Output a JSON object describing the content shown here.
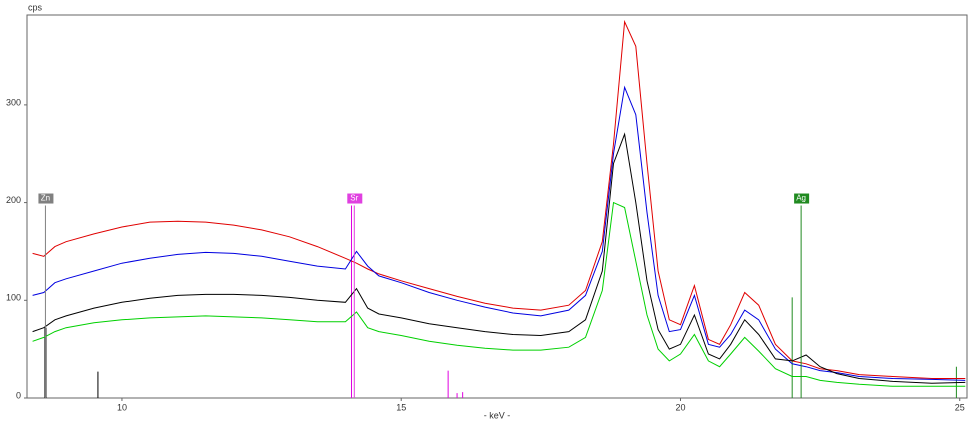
{
  "chart_data": {
    "type": "line",
    "y_label": "cps",
    "x_label": "- keV -",
    "xlim": [
      8.3,
      25.13
    ],
    "xticks": [
      10,
      15,
      20,
      25
    ],
    "ylim": [
      0,
      392
    ],
    "yticks": [
      0,
      100,
      200,
      300
    ],
    "x": [
      8.4,
      8.6,
      8.8,
      9.0,
      9.5,
      10,
      10.5,
      11,
      11.5,
      12,
      12.5,
      13,
      13.5,
      14.0,
      14.2,
      14.4,
      14.6,
      15,
      15.5,
      16,
      16.5,
      17,
      17.5,
      18,
      18.3,
      18.6,
      18.8,
      19.0,
      19.2,
      19.4,
      19.6,
      19.8,
      20.0,
      20.25,
      20.5,
      20.7,
      20.9,
      21.15,
      21.4,
      21.7,
      22.0,
      22.25,
      22.5,
      22.8,
      23.2,
      23.8,
      24.5,
      25.1
    ],
    "series": [
      {
        "color": "#e00000",
        "values": [
          148,
          145,
          155,
          160,
          168,
          175,
          180,
          181,
          180,
          177,
          172,
          165,
          155,
          143,
          138,
          132,
          127,
          120,
          112,
          104,
          97,
          92,
          90,
          95,
          110,
          160,
          260,
          385,
          360,
          240,
          130,
          80,
          75,
          115,
          60,
          55,
          75,
          108,
          95,
          55,
          38,
          35,
          30,
          28,
          24,
          22,
          20,
          20
        ]
      },
      {
        "color": "#0000e0",
        "values": [
          105,
          108,
          118,
          122,
          130,
          138,
          143,
          147,
          149,
          148,
          145,
          140,
          135,
          132,
          150,
          135,
          125,
          118,
          108,
          100,
          93,
          87,
          84,
          90,
          105,
          150,
          250,
          318,
          290,
          190,
          105,
          68,
          70,
          105,
          55,
          52,
          65,
          90,
          80,
          50,
          35,
          32,
          28,
          26,
          22,
          20,
          19,
          18
        ]
      },
      {
        "color": "#000000",
        "values": [
          68,
          72,
          80,
          84,
          92,
          98,
          102,
          105,
          106,
          106,
          105,
          103,
          100,
          98,
          112,
          92,
          86,
          82,
          76,
          72,
          68,
          65,
          64,
          68,
          80,
          130,
          240,
          270,
          200,
          120,
          70,
          50,
          55,
          85,
          45,
          40,
          55,
          80,
          65,
          40,
          38,
          44,
          32,
          25,
          20,
          17,
          15,
          16
        ]
      },
      {
        "color": "#00d000",
        "values": [
          58,
          62,
          68,
          72,
          77,
          80,
          82,
          83,
          84,
          83,
          82,
          80,
          78,
          78,
          88,
          72,
          68,
          64,
          58,
          54,
          51,
          49,
          49,
          52,
          62,
          110,
          200,
          195,
          140,
          85,
          50,
          38,
          45,
          65,
          38,
          32,
          45,
          62,
          48,
          30,
          22,
          22,
          18,
          16,
          14,
          12,
          12,
          12
        ]
      }
    ],
    "markers": [
      {
        "name": "Zn",
        "x": 8.63,
        "value": 197,
        "color": "#808080"
      },
      {
        "name": "Sr",
        "x": 14.16,
        "value": 197,
        "color": "#e040e0"
      },
      {
        "name": "Ag",
        "x": 22.16,
        "value": 197,
        "color": "#208a20"
      }
    ],
    "lines": [
      {
        "color": "#000000",
        "x": [
          8.63,
          9.57
        ],
        "values": [
          72,
          27
        ]
      },
      {
        "color": "#e000e0",
        "x": [
          14.11,
          15.84,
          16.0,
          16.1
        ],
        "values": [
          197,
          28,
          5,
          6
        ]
      },
      {
        "color": "#208a20",
        "x": [
          22.0,
          24.94
        ],
        "values": [
          103,
          32
        ]
      }
    ]
  }
}
